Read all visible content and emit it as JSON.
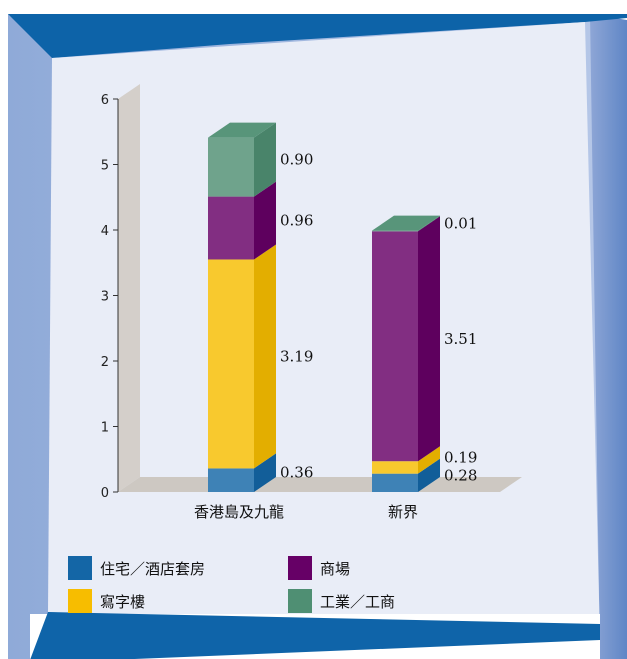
{
  "chart_data": {
    "type": "bar",
    "stacked": true,
    "categories": [
      "香港島及九龍",
      "新界"
    ],
    "series": [
      {
        "name": "住宅／酒店套房",
        "values": [
          0.36,
          0.28
        ],
        "color": "#1466a6"
      },
      {
        "name": "寫字樓",
        "values": [
          3.19,
          0.19
        ],
        "color": "#f7bd00"
      },
      {
        "name": "商場",
        "values": [
          0.96,
          3.51
        ],
        "color": "#660066"
      },
      {
        "name": "工業／工商",
        "values": [
          0.9,
          0.01
        ],
        "color": "#4f8f73"
      }
    ],
    "value_labels": [
      [
        "0.36",
        "3.19",
        "0.96",
        "0.90"
      ],
      [
        "0.28",
        "0.19",
        "3.51",
        "0.01"
      ]
    ],
    "yticks": [
      "0",
      "1",
      "2",
      "3",
      "4",
      "5",
      "6"
    ],
    "ylim": [
      0,
      6
    ],
    "legend_position": "bottom",
    "legend_order": [
      0,
      2,
      1,
      3
    ]
  }
}
